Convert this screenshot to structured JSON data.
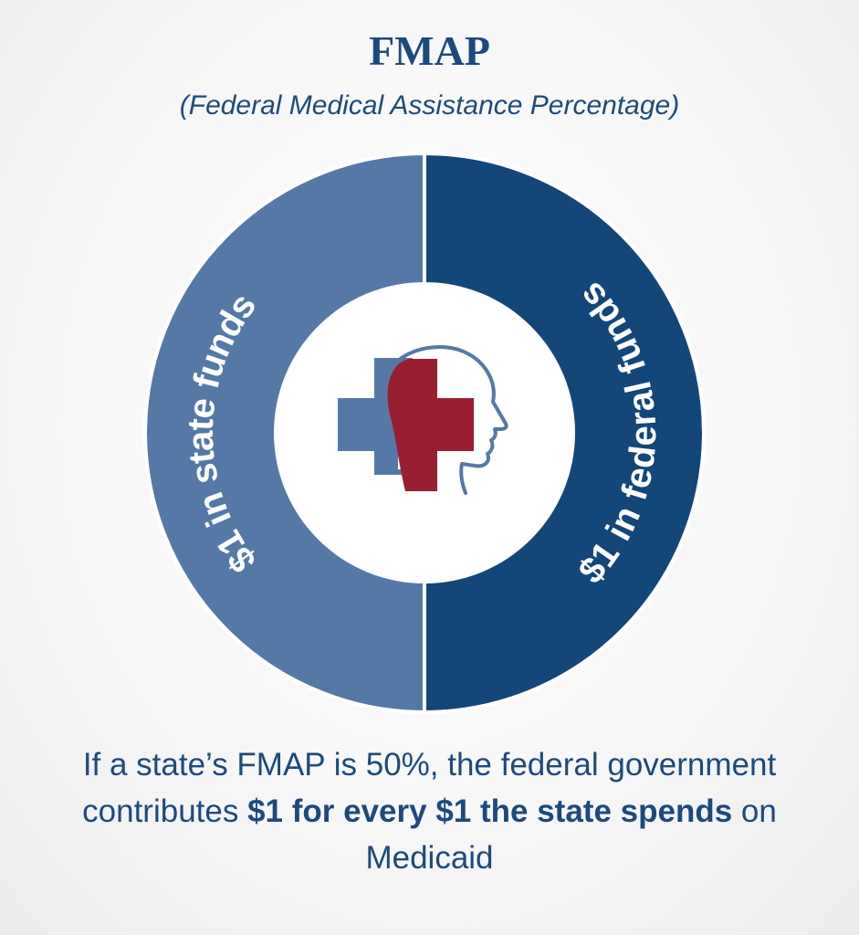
{
  "header": {
    "title": "FMAP",
    "subtitle": "(Federal Medical Assistance Percentage)"
  },
  "chart_data": {
    "type": "pie",
    "style": "donut",
    "categories": [
      "$1 in state funds",
      "$1 in federal funds"
    ],
    "values": [
      1,
      1
    ],
    "colors": [
      "#5479a6",
      "#134679"
    ],
    "center_icon": "medical-cross-head-icon"
  },
  "caption": {
    "part1": "If a state’s FMAP is 50%, the federal government contributes ",
    "bold1": "$1 for every $1 the state spends",
    "part2": " on Medicaid"
  },
  "colors": {
    "text": "#1d4a7c",
    "icon_blue": "#5479a6",
    "icon_red": "#981f32"
  }
}
